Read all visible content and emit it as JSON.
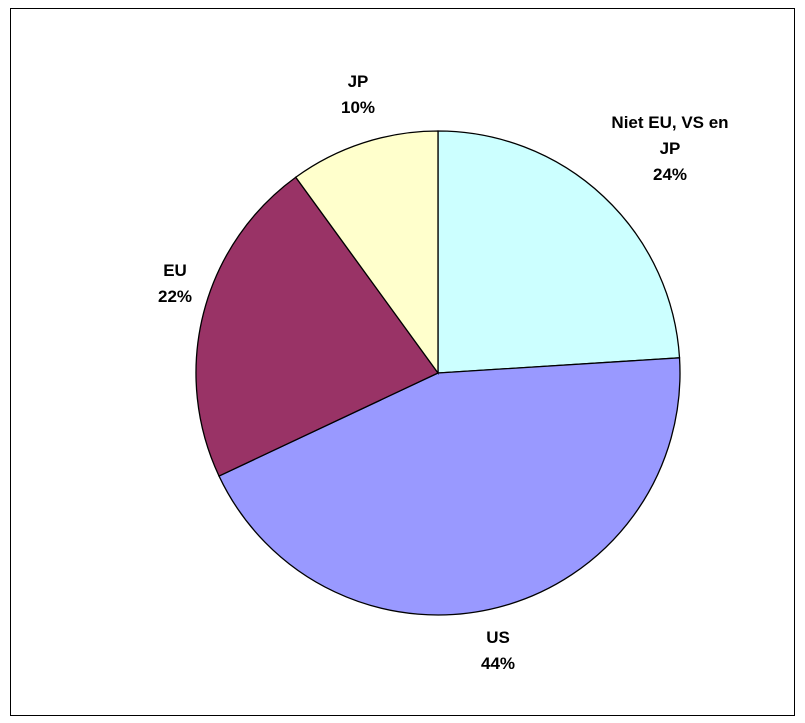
{
  "chart_data": {
    "type": "pie",
    "start_angle_deg": 90,
    "direction": "clockwise",
    "slices": [
      {
        "label": "Niet EU, VS en JP",
        "label_lines": [
          "Niet EU, VS en",
          "JP"
        ],
        "value": 24,
        "display": "24%",
        "color": "#CCFFFF"
      },
      {
        "label": "US",
        "label_lines": [
          "US"
        ],
        "value": 44,
        "display": "44%",
        "color": "#9999FF"
      },
      {
        "label": "EU",
        "label_lines": [
          "EU"
        ],
        "value": 22,
        "display": "22%",
        "color": "#993366"
      },
      {
        "label": "JP",
        "label_lines": [
          "JP"
        ],
        "value": 10,
        "display": "10%",
        "color": "#FFFFCC"
      }
    ]
  }
}
